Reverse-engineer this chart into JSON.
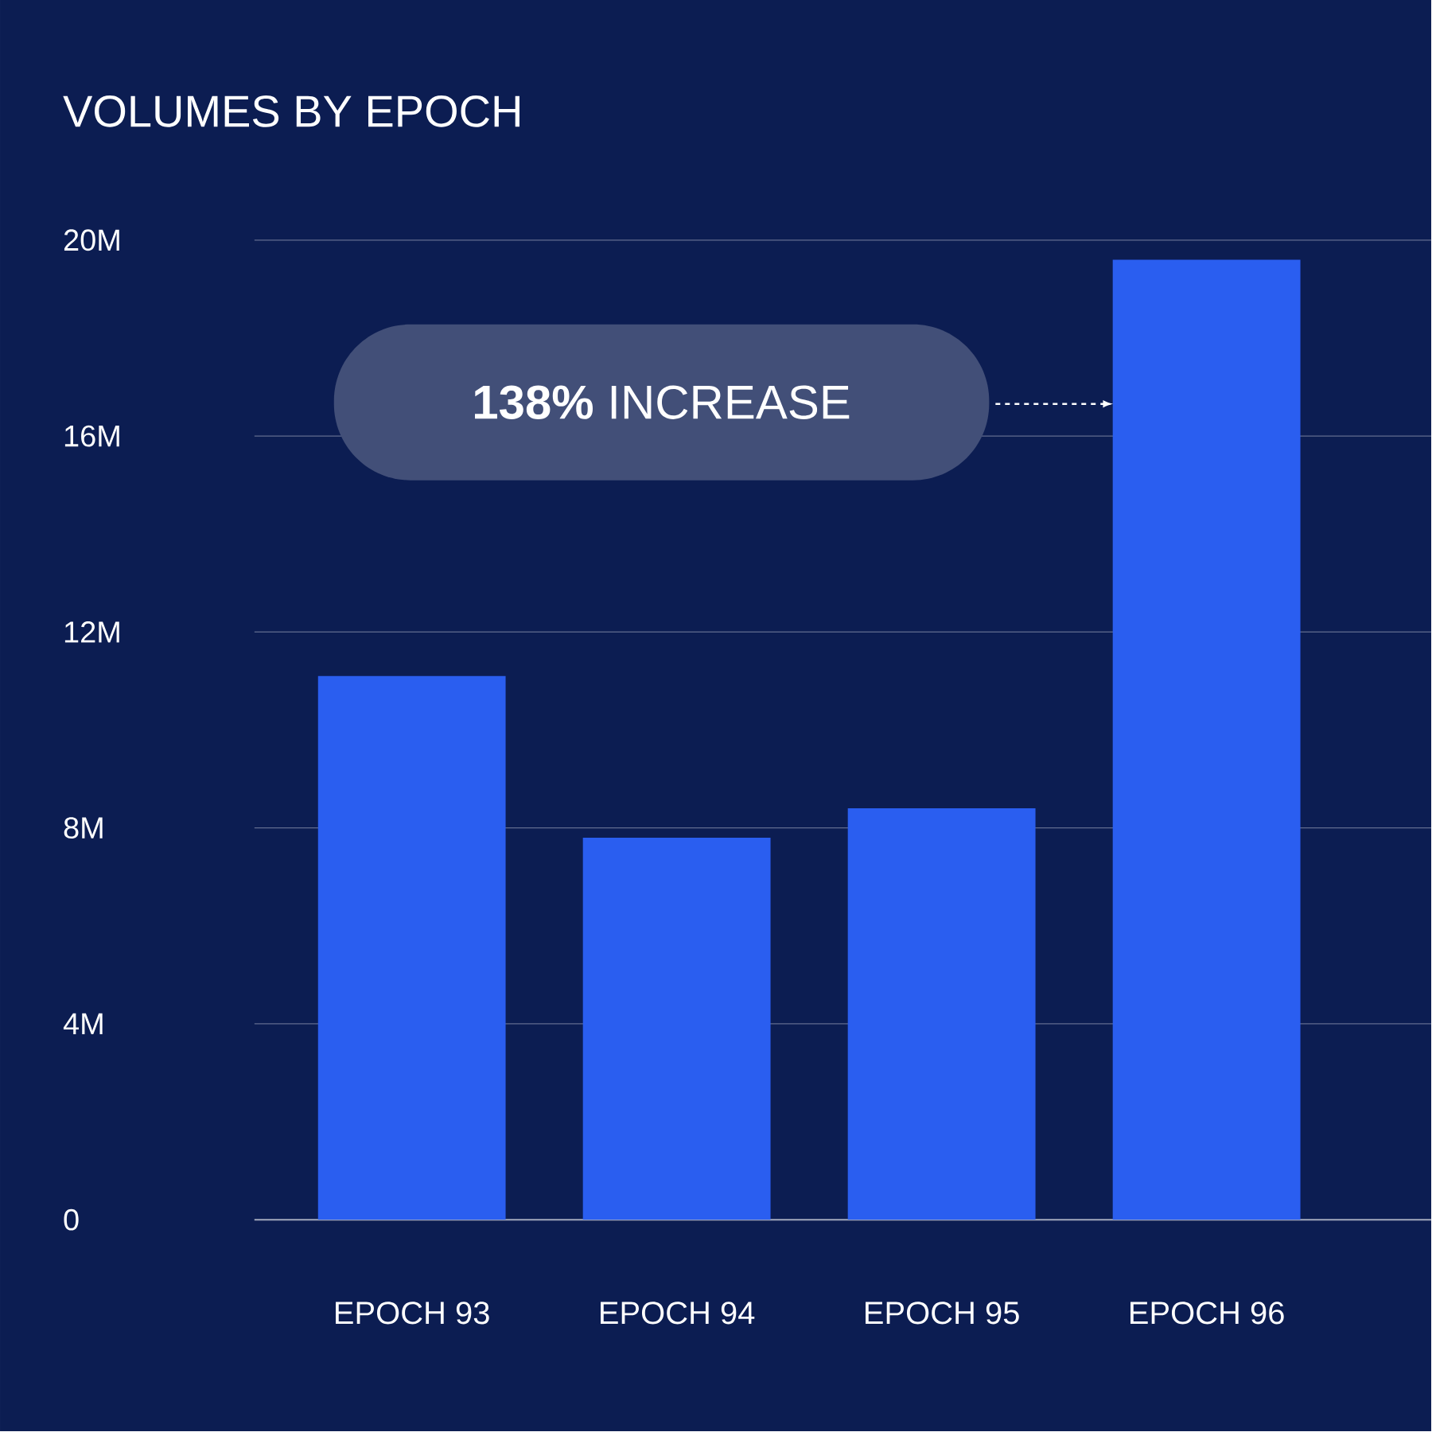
{
  "chart_data": {
    "type": "bar",
    "title": "VOLUMES BY EPOCH",
    "categories": [
      "EPOCH 93",
      "EPOCH 94",
      "EPOCH 95",
      "EPOCH 96"
    ],
    "values": [
      11.1,
      7.8,
      8.4,
      19.6
    ],
    "color": "#2a5ef0",
    "ylim": [
      0,
      20
    ],
    "yticks": [
      {
        "value": 0,
        "label": "0"
      },
      {
        "value": 4,
        "label": "4M"
      },
      {
        "value": 8,
        "label": "8M"
      },
      {
        "value": 12,
        "label": "12M"
      },
      {
        "value": 16,
        "label": "16M"
      },
      {
        "value": 20,
        "label": "20M"
      }
    ],
    "grid": "y",
    "annotations": [
      "**138%** INCREASE"
    ]
  }
}
